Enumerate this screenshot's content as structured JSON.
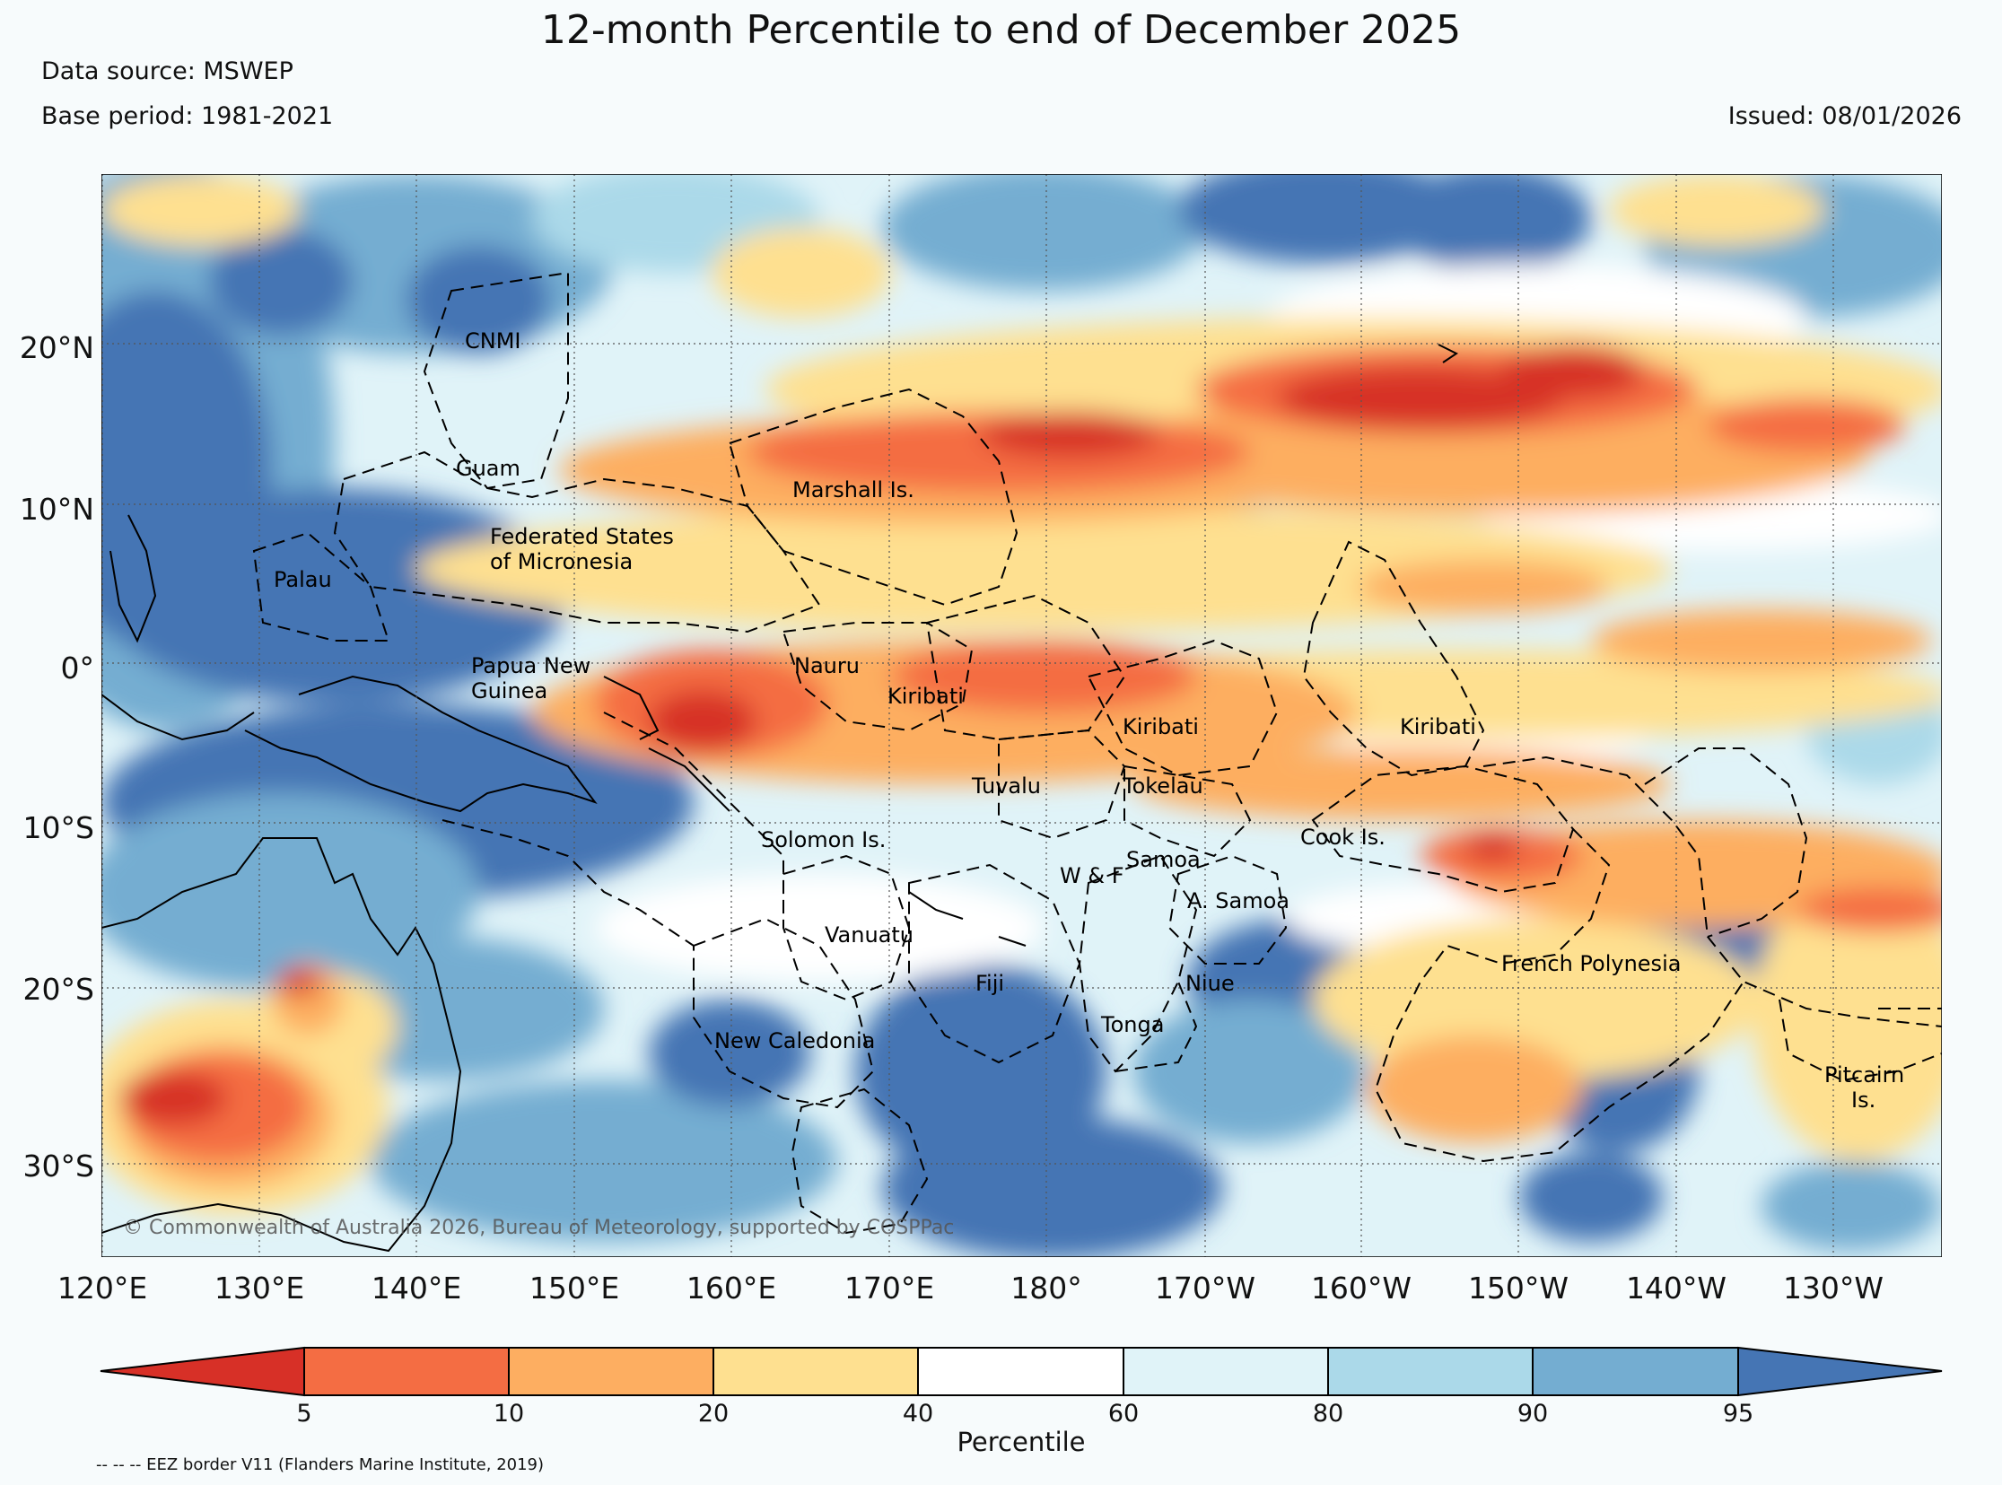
{
  "title": "12-month Percentile to end of December 2025",
  "data_source": "Data source: MSWEP",
  "base_period": "Base period: 1981-2021",
  "issued": "Issued: 08/01/2026",
  "lat_labels": [
    "20°N",
    "10°N",
    "0°",
    "10°S",
    "20°S",
    "30°S"
  ],
  "lon_labels": [
    "120°E",
    "130°E",
    "140°E",
    "150°E",
    "160°E",
    "170°E",
    "180°",
    "170°W",
    "160°W",
    "150°W",
    "140°W",
    "130°W"
  ],
  "map_labels": {
    "cnmi": "CNMI",
    "guam": "Guam",
    "marshall": "Marshall Is.",
    "fsm1": "Federated States",
    "fsm2": "of Micronesia",
    "palau": "Palau",
    "png1": "Papua New",
    "png2": "Guinea",
    "nauru": "Nauru",
    "kiribati_w": "Kiribati",
    "kiribati_c": "Kiribati",
    "kiribati_e": "Kiribati",
    "tuvalu": "Tuvalu",
    "tokelau": "Tokelau",
    "solomon": "Solomon Is.",
    "samoa": "Samoa",
    "wf": "W & F",
    "asamoa": "A. Samoa",
    "cook": "Cook Is.",
    "vanuatu": "Vanuatu",
    "fiji": "Fiji",
    "niue": "Niue",
    "tonga": "Tonga",
    "frpoly": "French Polynesia",
    "newcal": "New Caledonia",
    "pitcairn1": "Pitcairn",
    "pitcairn2": "Is."
  },
  "copyright": "© Commonwealth of Australia 2026, Bureau of Meteorology, supported by COSPPac",
  "legend": {
    "title": "Percentile",
    "ticks": [
      "5",
      "10",
      "20",
      "40",
      "60",
      "80",
      "90",
      "95"
    ],
    "colors": [
      "#d73027",
      "#f46d43",
      "#fdae61",
      "#fee090",
      "#ffffff",
      "#e0f3f8",
      "#abd9e9",
      "#74add1",
      "#4575b4"
    ]
  },
  "credit": "-- -- -- EEZ border V11 (Flanders Marine Institute, 2019)"
}
